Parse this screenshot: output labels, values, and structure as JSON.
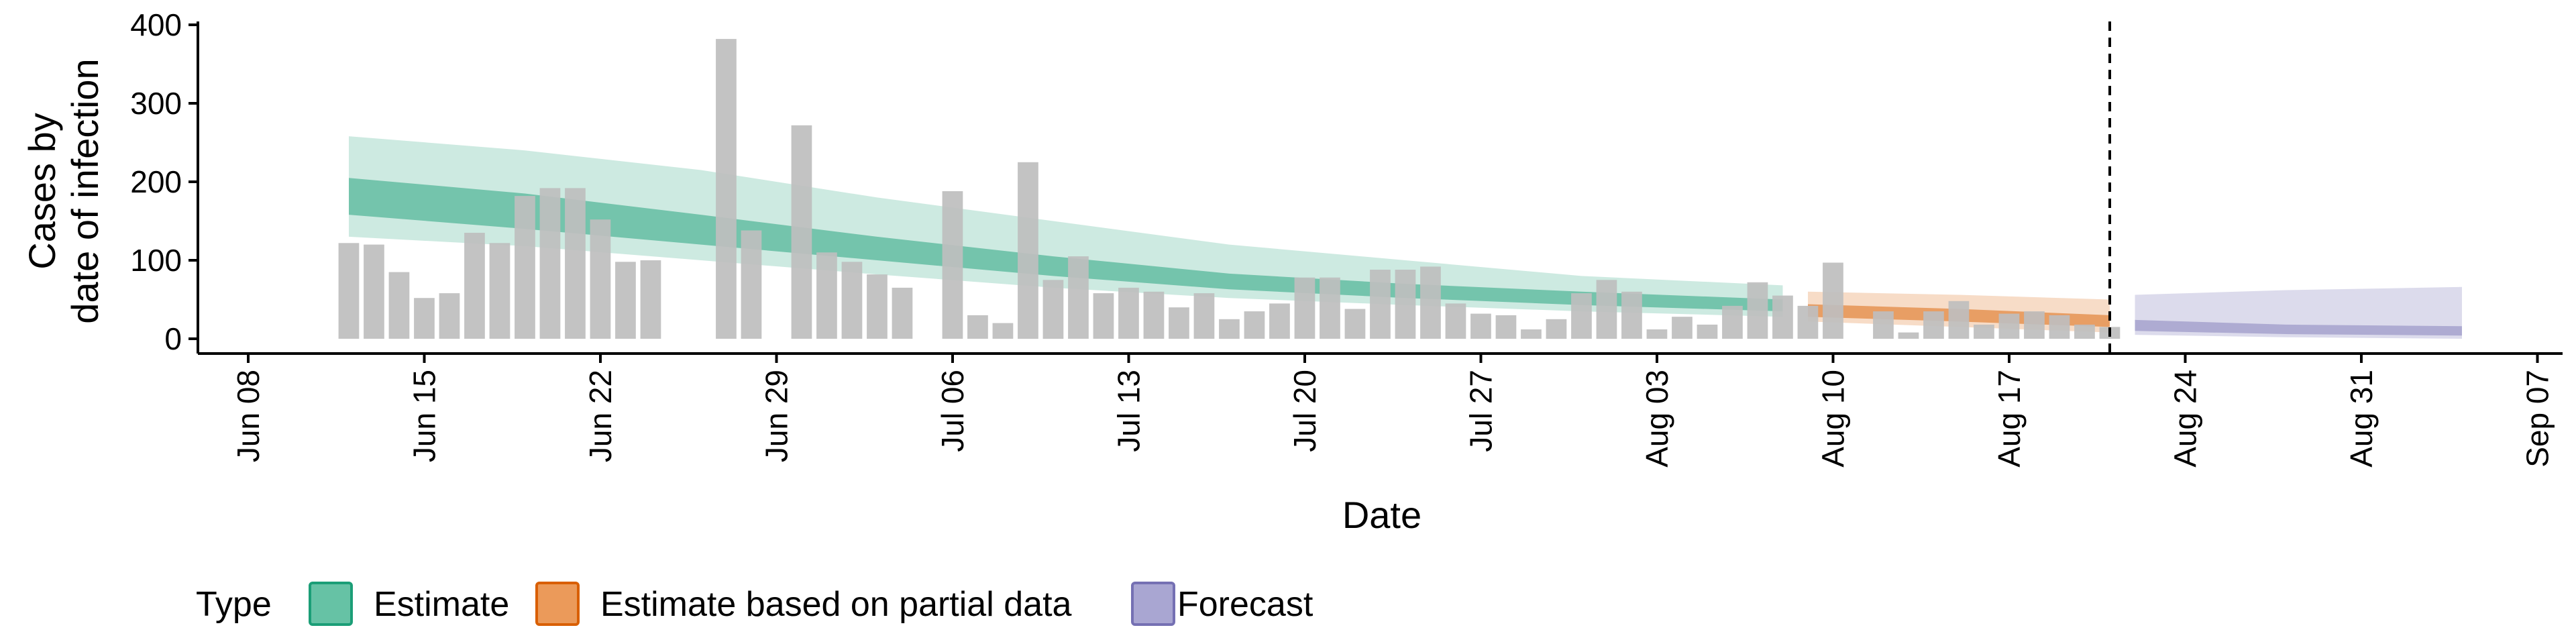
{
  "chart_data": {
    "type": "bar",
    "xlabel": "Date",
    "ylabel_lines": [
      "Cases by",
      "date of infection"
    ],
    "ylim": [
      0,
      400
    ],
    "y_ticks": [
      0,
      100,
      200,
      300,
      400
    ],
    "x_range": [
      "2020-06-06",
      "2020-09-08"
    ],
    "x_ticks": [
      {
        "date": "2020-06-08",
        "label": "Jun 08"
      },
      {
        "date": "2020-06-15",
        "label": "Jun 15"
      },
      {
        "date": "2020-06-22",
        "label": "Jun 22"
      },
      {
        "date": "2020-06-29",
        "label": "Jun 29"
      },
      {
        "date": "2020-07-06",
        "label": "Jul 06"
      },
      {
        "date": "2020-07-13",
        "label": "Jul 13"
      },
      {
        "date": "2020-07-20",
        "label": "Jul 20"
      },
      {
        "date": "2020-07-27",
        "label": "Jul 27"
      },
      {
        "date": "2020-08-03",
        "label": "Aug 03"
      },
      {
        "date": "2020-08-10",
        "label": "Aug 10"
      },
      {
        "date": "2020-08-17",
        "label": "Aug 17"
      },
      {
        "date": "2020-08-24",
        "label": "Aug 24"
      },
      {
        "date": "2020-08-31",
        "label": "Aug 31"
      },
      {
        "date": "2020-09-07",
        "label": "Sep 07"
      }
    ],
    "reported_cases": {
      "dates": [
        "2020-06-12",
        "2020-06-13",
        "2020-06-14",
        "2020-06-15",
        "2020-06-16",
        "2020-06-17",
        "2020-06-18",
        "2020-06-19",
        "2020-06-20",
        "2020-06-21",
        "2020-06-22",
        "2020-06-23",
        "2020-06-24",
        "2020-06-25",
        "2020-06-26",
        "2020-06-27",
        "2020-06-28",
        "2020-06-29",
        "2020-06-30",
        "2020-07-01",
        "2020-07-02",
        "2020-07-03",
        "2020-07-04",
        "2020-07-05",
        "2020-07-06",
        "2020-07-07",
        "2020-07-08",
        "2020-07-09",
        "2020-07-10",
        "2020-07-11",
        "2020-07-12",
        "2020-07-13",
        "2020-07-14",
        "2020-07-15",
        "2020-07-16",
        "2020-07-17",
        "2020-07-18",
        "2020-07-19",
        "2020-07-20",
        "2020-07-21",
        "2020-07-22",
        "2020-07-23",
        "2020-07-24",
        "2020-07-25",
        "2020-07-26",
        "2020-07-27",
        "2020-07-28",
        "2020-07-29",
        "2020-07-30",
        "2020-07-31",
        "2020-08-01",
        "2020-08-02",
        "2020-08-03",
        "2020-08-04",
        "2020-08-05",
        "2020-08-06",
        "2020-08-07",
        "2020-08-08",
        "2020-08-09",
        "2020-08-10",
        "2020-08-11",
        "2020-08-12",
        "2020-08-13",
        "2020-08-14",
        "2020-08-15",
        "2020-08-16",
        "2020-08-17",
        "2020-08-18",
        "2020-08-19",
        "2020-08-20",
        "2020-08-21"
      ],
      "values": [
        122,
        120,
        85,
        52,
        58,
        135,
        122,
        182,
        192,
        192,
        152,
        98,
        100,
        0,
        0,
        382,
        138,
        0,
        272,
        110,
        98,
        82,
        65,
        0,
        188,
        30,
        20,
        225,
        75,
        105,
        58,
        65,
        60,
        40,
        58,
        25,
        35,
        45,
        78,
        78,
        38,
        88,
        88,
        92,
        45,
        32,
        30,
        12,
        25,
        58,
        75,
        60,
        12,
        28,
        18,
        42,
        72,
        55,
        42,
        97,
        0,
        35,
        8,
        35,
        48,
        18,
        32,
        35,
        30,
        18,
        15
      ]
    },
    "estimate": {
      "dates": [
        "2020-06-12",
        "2020-06-19",
        "2020-06-26",
        "2020-07-03",
        "2020-07-10",
        "2020-07-17",
        "2020-07-24",
        "2020-07-31",
        "2020-08-08"
      ],
      "median": [
        190,
        165,
        140,
        115,
        92,
        72,
        60,
        50,
        42
      ],
      "lower_50": [
        158,
        140,
        120,
        100,
        80,
        63,
        52,
        43,
        35
      ],
      "upper_50": [
        205,
        185,
        158,
        130,
        105,
        83,
        70,
        60,
        50
      ],
      "lower_90": [
        130,
        118,
        100,
        82,
        65,
        52,
        43,
        35,
        28
      ],
      "upper_90": [
        258,
        240,
        215,
        180,
        150,
        120,
        100,
        80,
        68
      ]
    },
    "estimate_partial": {
      "dates": [
        "2020-08-09",
        "2020-08-15",
        "2020-08-21"
      ],
      "median": [
        36,
        30,
        22
      ],
      "lower_50": [
        28,
        22,
        15
      ],
      "upper_50": [
        44,
        38,
        30
      ],
      "lower_90": [
        22,
        15,
        8
      ],
      "upper_90": [
        60,
        56,
        50
      ]
    },
    "forecast": {
      "dates": [
        "2020-08-22",
        "2020-08-28",
        "2020-09-04"
      ],
      "lower_90": [
        5,
        2,
        0
      ],
      "upper_90": [
        56,
        62,
        66
      ],
      "lower_50": [
        10,
        6,
        4
      ],
      "upper_50": [
        24,
        18,
        16
      ]
    },
    "vertical_line_date": "2020-08-21",
    "legend": {
      "title": "Type",
      "placement": "bottom",
      "items": [
        {
          "label": "Estimate",
          "fill": "#66c2a5",
          "stroke": "#1b9e77"
        },
        {
          "label": "Estimate based on partial data",
          "fill": "#eb9a5a",
          "stroke": "#d95f02"
        },
        {
          "label": "Forecast",
          "fill": "#a9a6d2",
          "stroke": "#7570b3"
        }
      ]
    },
    "colors": {
      "bars": "#bebebe",
      "estimate": "#1b9e77",
      "estimate_partial": "#d95f02",
      "forecast": "#7570b3"
    }
  }
}
